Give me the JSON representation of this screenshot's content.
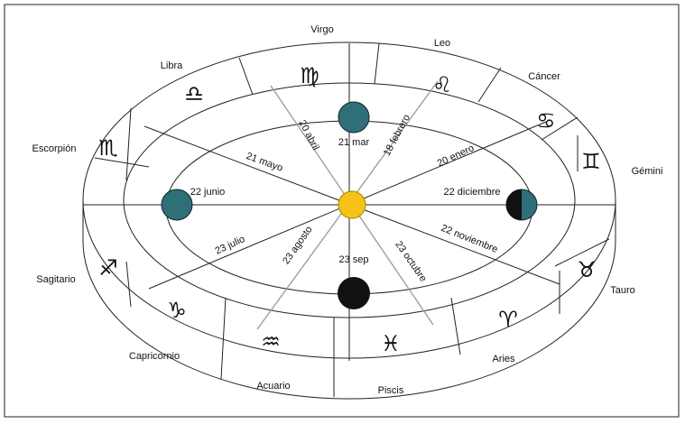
{
  "signs": [
    {
      "name": "Virgo",
      "symbol": "♍"
    },
    {
      "name": "Leo",
      "symbol": "♌"
    },
    {
      "name": "Cáncer",
      "symbol": "♋"
    },
    {
      "name": "Gémini",
      "symbol": "♊"
    },
    {
      "name": "Tauro",
      "symbol": "♉"
    },
    {
      "name": "Aries",
      "symbol": "♈"
    },
    {
      "name": "Piscis",
      "symbol": "♓"
    },
    {
      "name": "Acuario",
      "symbol": "♒"
    },
    {
      "name": "Capricornio",
      "symbol": "♑"
    },
    {
      "name": "Sagitario",
      "symbol": "♐"
    },
    {
      "name": "Escorpión",
      "symbol": "♏"
    },
    {
      "name": "Libra",
      "symbol": "♎"
    }
  ],
  "dates": [
    "21 mar",
    "22 junio",
    "22 diciembre",
    "23 sep",
    "20 abril",
    "18 febrero",
    "21 mayo",
    "20 enero",
    "23 julio",
    "23 agosto",
    "23 octubre",
    "22 noviembre"
  ]
}
